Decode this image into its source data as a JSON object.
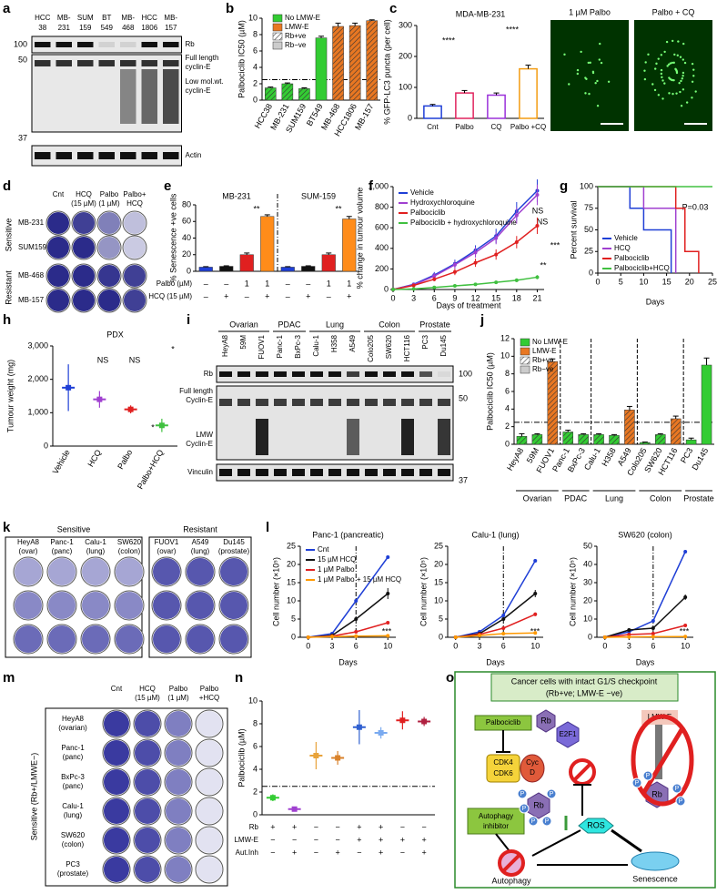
{
  "panels": [
    "a",
    "b",
    "c",
    "d",
    "e",
    "f",
    "g",
    "h",
    "i",
    "j",
    "k",
    "l",
    "m",
    "n",
    "o"
  ],
  "blot_a": {
    "lanes": [
      [
        "HCC",
        "38"
      ],
      [
        "MB-",
        "231"
      ],
      [
        "SUM",
        "159"
      ],
      [
        "BT",
        "549"
      ],
      [
        "MB-",
        "468"
      ],
      [
        "HCC",
        "1806"
      ],
      [
        "MB-",
        "157"
      ]
    ],
    "rows": [
      [
        "Rb"
      ],
      [
        "Full length",
        "cyclin-E"
      ],
      [
        "Low mol.wt.",
        "cyclin-E"
      ],
      [
        "Actin"
      ]
    ],
    "markers": [
      100,
      50,
      37
    ]
  },
  "images_c": [
    "1 µM Palbo",
    "Palbo + CQ"
  ],
  "plates_d": {
    "columns": [
      [
        "Cnt"
      ],
      [
        "HCQ",
        "(15 µM)"
      ],
      [
        "Palbo",
        "(1 µM)"
      ],
      [
        "Palbo+",
        "HCQ"
      ]
    ],
    "rows": [
      "MB-231",
      "SUM159",
      "MB-468",
      "MB-157"
    ],
    "groups": [
      "Sensitive",
      "Resistant"
    ]
  },
  "blot_i": {
    "groups": [
      "Ovarian",
      "PDAC",
      "Lung",
      "Colon",
      "Prostate"
    ],
    "lanes": [
      "HeyA8",
      "59M",
      "FUOV1",
      "Panc-1",
      "BxPc-3",
      "Calu-1",
      "H358",
      "A549",
      "Colo205",
      "SW620",
      "HCT116",
      "PC3",
      "Du145"
    ],
    "rows": [
      [
        "Rb"
      ],
      [
        "Full length",
        "Cyclin-E"
      ],
      [
        "LMW",
        "Cyclin-E"
      ],
      [
        "Vinculin"
      ]
    ],
    "markers": [
      100,
      50,
      37
    ]
  },
  "plates_k": {
    "groups": [
      "Sensitive",
      "Resistant"
    ],
    "sensitive": [
      [
        "HeyA8",
        "(ovar)"
      ],
      [
        "Panc-1",
        "(panc)"
      ],
      [
        "Calu-1",
        "(lung)"
      ],
      [
        "SW620",
        "(colon)"
      ]
    ],
    "resistant": [
      [
        "FUOV1",
        "(ovar)"
      ],
      [
        "A549",
        "(lung)"
      ],
      [
        "Du145",
        "(prostate)"
      ]
    ]
  },
  "plates_m": {
    "columns": [
      [
        "Cnt"
      ],
      [
        "HCQ",
        "(15 µM)"
      ],
      [
        "Palbo",
        "(1 µM)"
      ],
      [
        "Palbo",
        "+HCQ"
      ]
    ],
    "rows": [
      [
        "HeyA8",
        "(ovarian)"
      ],
      [
        "Panc-1",
        "(panc)"
      ],
      [
        "BxPc-3",
        "(panc)"
      ],
      [
        "Calu-1",
        "(lung)"
      ],
      [
        "SW620",
        "(colon)"
      ],
      [
        "PC3",
        "(prostate)"
      ]
    ],
    "side": "Sensitive (Rb+/LMWE−)"
  },
  "diagram_o": {
    "title": [
      "Cancer cells with intact G1/S checkpoint",
      "(Rb+ve; LMW-E −ve)"
    ],
    "palbociclib": "Palbociclib",
    "rb": "Rb",
    "e2f1": "E2F1",
    "cdk4": "CDK4",
    "cdk6": "CDK6",
    "cycd": [
      "Cyc",
      "D"
    ],
    "rb_p": "Rb",
    "lmwe": "LMW-E",
    "rb_lmwe": "Rb",
    "inhibitor": [
      "Autophagy",
      "inhibitor"
    ],
    "ros": "ROS",
    "autophagy": "Autophagy",
    "senescence": "Senescence",
    "phosphate": "P"
  },
  "chart_data": [
    {
      "type": "bar",
      "ylabel": "Palbociclib IC50 (µM)",
      "categories": [
        "HCC38",
        "MB-231",
        "SUM159",
        "BT549",
        "MB-468",
        "HCC1806",
        "MB-157"
      ],
      "values": [
        1.5,
        2.0,
        1.4,
        7.6,
        9.0,
        9.1,
        9.7
      ],
      "errors": [
        0.1,
        0.1,
        0.1,
        0.2,
        0.4,
        0.3,
        0.1
      ],
      "colors": [
        "#33cc33",
        "#33cc33",
        "#33cc33",
        "#33cc33",
        "#e87722",
        "#e87722",
        "#e87722"
      ],
      "hatched": [
        true,
        true,
        true,
        false,
        true,
        true,
        true
      ],
      "rotate_labels": true,
      "reference": 2.5,
      "ylim": [
        0,
        10
      ],
      "yticks": [
        0,
        2,
        4,
        6,
        8,
        10
      ],
      "legend": [
        {
          "name": "No LMW-E",
          "color": "#33cc33",
          "hatched": false
        },
        {
          "name": "LMW-E",
          "color": "#e87722",
          "hatched": false
        },
        {
          "name": "Rb+ve",
          "color": "#ffffff",
          "hatched": true
        },
        {
          "name": "Rb−ve",
          "color": "#cccccc",
          "hatched": false
        }
      ]
    },
    {
      "type": "bar",
      "style": "outline",
      "title": "MDA-MB-231",
      "ylabel": "% GFP-LC3 puncta (per cell)",
      "categories": [
        "Cnt",
        "Palbo",
        "CQ",
        "Palbo +CQ"
      ],
      "values": [
        40,
        82,
        75,
        160
      ],
      "errors": [
        5,
        8,
        7,
        12
      ],
      "colors": [
        "#1f3fd6",
        "#e0245e",
        "#9b30d9",
        "#f39c12"
      ],
      "ylim": [
        0,
        300
      ],
      "yticks": [
        0,
        100,
        200,
        300
      ],
      "annotations": [
        "****",
        "****"
      ]
    },
    {
      "type": "bar",
      "ylabel": "% Senescence +ve cells",
      "categories": [
        null,
        null,
        null,
        null,
        null,
        null,
        null,
        null
      ],
      "values": [
        5,
        6,
        20,
        66,
        5,
        6,
        20,
        63
      ],
      "errors": [
        0.6,
        0.6,
        2,
        2,
        0.6,
        0.6,
        2,
        3
      ],
      "colors": [
        "#1f3fd6",
        "#111111",
        "#e02020",
        "#ff8c1a",
        "#1f3fd6",
        "#111111",
        "#e02020",
        "#ff8c1a"
      ],
      "groups": [
        "MB-231",
        "SUM-159"
      ],
      "ylim": [
        0,
        80
      ],
      "yticks": [
        0,
        20,
        40,
        60,
        80
      ],
      "conditions": [
        {
          "name": "Palbo (µM)",
          "marks": [
            "–",
            "–",
            "1",
            "1",
            "–",
            "–",
            "1",
            "1"
          ]
        },
        {
          "name": "HCQ (15 µM)",
          "marks": [
            "–",
            "+",
            "–",
            "+",
            "–",
            "+",
            "–",
            "+"
          ]
        }
      ],
      "annotations": [
        "**",
        "**"
      ]
    },
    {
      "type": "line",
      "xlabel": "Days of treatment",
      "ylabel": "% change in tumour volume",
      "x": [
        0,
        3,
        6,
        9,
        12,
        15,
        18,
        21
      ],
      "xlim": [
        0,
        22
      ],
      "xticks": [
        0,
        3,
        6,
        9,
        12,
        15,
        18,
        21
      ],
      "ylim": [
        0,
        1000
      ],
      "yticks": [
        0,
        200,
        400,
        600,
        800,
        {
          "value": 1000,
          "label": "1,000"
        }
      ],
      "series": [
        {
          "name": "Vehicle",
          "color": "#1f3fd6",
          "values": [
            0,
            50,
            140,
            250,
            380,
            520,
            760,
            960
          ],
          "errors": [
            0,
            15,
            30,
            40,
            50,
            70,
            90,
            110
          ]
        },
        {
          "name": "Hydroxychloroquine",
          "color": "#a040d0",
          "values": [
            0,
            45,
            130,
            240,
            360,
            500,
            720,
            920
          ],
          "errors": [
            0,
            15,
            30,
            40,
            50,
            60,
            80,
            100
          ]
        },
        {
          "name": "Palbociclib",
          "color": "#e02020",
          "values": [
            0,
            40,
            100,
            170,
            260,
            340,
            460,
            620
          ],
          "errors": [
            0,
            15,
            20,
            30,
            40,
            50,
            60,
            80
          ]
        },
        {
          "name": "Palbociclib + hydroxychloroquine",
          "color": "#40c040",
          "values": [
            0,
            5,
            20,
            35,
            50,
            70,
            90,
            120
          ],
          "errors": [
            0,
            5,
            8,
            10,
            12,
            15,
            18,
            20
          ]
        }
      ],
      "annotations": [
        "NS",
        "NS",
        "***",
        "**"
      ]
    },
    {
      "type": "step",
      "xlabel": "Days",
      "ylabel": "Percent survival",
      "xlim": [
        0,
        25
      ],
      "xticks": [
        0,
        5,
        10,
        15,
        20,
        25
      ],
      "ylim": [
        0,
        100
      ],
      "yticks": [
        0,
        25,
        50,
        75,
        100
      ],
      "series": [
        {
          "name": "Vehicle",
          "color": "#1f3fd6",
          "x": [
            0,
            7,
            10,
            16
          ],
          "values": [
            100,
            75,
            50,
            0
          ]
        },
        {
          "name": "HCQ",
          "color": "#a040d0",
          "x": [
            0,
            10,
            17
          ],
          "values": [
            100,
            75,
            0
          ]
        },
        {
          "name": "Palbociclib",
          "color": "#e02020",
          "x": [
            0,
            17,
            19,
            22
          ],
          "values": [
            100,
            75,
            25,
            0
          ]
        },
        {
          "name": "Palbociclib+HCQ",
          "color": "#40c040",
          "x": [
            0,
            25
          ],
          "values": [
            100,
            100
          ]
        }
      ],
      "annotations": [
        "P=0.03"
      ]
    },
    {
      "type": "dot",
      "title": "PDX",
      "ylabel": "Tumour weight (mg)",
      "categories": [
        "Vehicle",
        "HCQ",
        "Palbo",
        "Palbo+HCQ"
      ],
      "values": [
        1750,
        1400,
        1100,
        620
      ],
      "errors": [
        700,
        250,
        120,
        200
      ],
      "colors": [
        "#1f3fd6",
        "#a040d0",
        "#e02020",
        "#40c040"
      ],
      "rotate_labels": true,
      "ylim": [
        0,
        3000
      ],
      "yticks": [
        0,
        {
          "value": 1000,
          "label": "1,000"
        },
        {
          "value": 2000,
          "label": "2,000"
        },
        {
          "value": 3000,
          "label": "3,000"
        }
      ],
      "annotations": [
        "NS",
        "NS",
        "*",
        "*"
      ]
    },
    {
      "type": "bar",
      "ylabel": "Palbociclib IC50 (µM)",
      "categories": [
        "HeyA8",
        "59M",
        "FUOV1",
        "Panc-1",
        "BxPc-3",
        "Calu-1",
        "H358",
        "A549",
        "Colo205",
        "SW620",
        "HCT116",
        "PC3",
        "Du145"
      ],
      "values": [
        0.9,
        1.1,
        9.4,
        1.4,
        1.1,
        1.1,
        1.0,
        3.9,
        0.2,
        1.1,
        2.9,
        0.5,
        9.0
      ],
      "errors": [
        0.3,
        0.1,
        0.3,
        0.2,
        0.1,
        0.1,
        0.1,
        0.4,
        0.05,
        0.1,
        0.3,
        0.2,
        0.8
      ],
      "colors": [
        "#33cc33",
        "#33cc33",
        "#e87722",
        "#33cc33",
        "#33cc33",
        "#33cc33",
        "#33cc33",
        "#e87722",
        "#33cc33",
        "#33cc33",
        "#e87722",
        "#33cc33",
        "#33cc33"
      ],
      "hatched": [
        true,
        true,
        true,
        true,
        true,
        true,
        true,
        true,
        true,
        true,
        true,
        false,
        false
      ],
      "rotate_labels": true,
      "reference": 2.5,
      "ylim": [
        0,
        12
      ],
      "yticks": [
        0,
        2,
        4,
        6,
        8,
        10,
        12
      ],
      "groups": [
        "Ovarian",
        "PDAC",
        "Lung",
        "Colon",
        "Prostate"
      ],
      "legend": [
        {
          "name": "No LMW-E",
          "color": "#33cc33",
          "hatched": false
        },
        {
          "name": "LMW-E",
          "color": "#e87722",
          "hatched": false
        },
        {
          "name": "Rb+ve",
          "color": "#ffffff",
          "hatched": true
        },
        {
          "name": "Rb−ve",
          "color": "#cccccc",
          "hatched": false
        }
      ]
    },
    {
      "type": "line",
      "title": "Panc-1 (pancreatic)",
      "xlabel": "Days",
      "ylabel": "Cell number (×10⁵)",
      "x": [
        0,
        3,
        6,
        10
      ],
      "xlim": [
        -1,
        11
      ],
      "xticks": [
        0,
        3,
        6,
        10
      ],
      "ylim": [
        0,
        25
      ],
      "yticks": [
        0,
        5,
        10,
        15,
        20,
        25
      ],
      "marker_x": 6,
      "series": [
        {
          "name": "Cnt",
          "color": "#1f3fd6",
          "values": [
            0,
            1,
            10,
            22
          ],
          "errors": [
            0,
            0.3,
            0.5,
            0.5
          ]
        },
        {
          "name": "15 µM HCQ",
          "color": "#111111",
          "values": [
            0,
            0.5,
            5,
            12
          ],
          "errors": [
            0,
            0.2,
            0.5,
            1.5
          ]
        },
        {
          "name": "1 µM Palbo",
          "color": "#e02020",
          "values": [
            0,
            0.3,
            1.5,
            4
          ],
          "errors": [
            0,
            0.1,
            0.2,
            0.4
          ]
        },
        {
          "name": "1 µM Palbo + 15 µM HCQ",
          "color": "#ff9900",
          "values": [
            0,
            0.2,
            0.3,
            0.4
          ],
          "errors": [
            0,
            0.05,
            0.05,
            0.1
          ]
        }
      ],
      "annotations": [
        "***"
      ]
    },
    {
      "type": "line",
      "title": "Calu-1 (lung)",
      "xlabel": "Days",
      "ylabel": "Cell number (×10⁵)",
      "x": [
        0,
        3,
        6,
        10
      ],
      "xlim": [
        -1,
        11
      ],
      "xticks": [
        0,
        3,
        6,
        10
      ],
      "ylim": [
        0,
        25
      ],
      "yticks": [
        0,
        5,
        10,
        15,
        20,
        25
      ],
      "marker_x": 6,
      "series": [
        {
          "color": "#1f3fd6",
          "values": [
            0,
            1.5,
            6,
            21
          ],
          "errors": [
            0,
            0.3,
            0.5,
            0.5
          ]
        },
        {
          "color": "#111111",
          "values": [
            0,
            1,
            5,
            12
          ],
          "errors": [
            0,
            0.2,
            0.5,
            1
          ]
        },
        {
          "color": "#e02020",
          "values": [
            0,
            0.8,
            2.5,
            6.3
          ],
          "errors": [
            0,
            0.1,
            0.3,
            0.5
          ]
        },
        {
          "color": "#ff9900",
          "values": [
            0,
            0.5,
            1,
            1.2
          ],
          "errors": [
            0,
            0.05,
            0.1,
            0.1
          ]
        }
      ],
      "annotations": [
        "***"
      ]
    },
    {
      "type": "line",
      "title": "SW620 (colon)",
      "xlabel": "Days",
      "ylabel": "Cell number (×10⁵)",
      "x": [
        0,
        3,
        6,
        10
      ],
      "xlim": [
        -1,
        11
      ],
      "xticks": [
        0,
        3,
        6,
        10
      ],
      "ylim": [
        0,
        50
      ],
      "yticks": [
        0,
        10,
        20,
        30,
        40,
        50
      ],
      "marker_x": 6,
      "series": [
        {
          "color": "#1f3fd6",
          "values": [
            0,
            3,
            9,
            47
          ],
          "errors": [
            0,
            1.5,
            1,
            1
          ]
        },
        {
          "color": "#111111",
          "values": [
            0,
            4,
            5,
            22
          ],
          "errors": [
            0,
            1,
            1,
            1.5
          ]
        },
        {
          "color": "#e02020",
          "values": [
            0,
            1.5,
            2,
            6.5
          ],
          "errors": [
            0,
            0.3,
            0.3,
            0.5
          ]
        },
        {
          "color": "#ff9900",
          "values": [
            0,
            0.2,
            0.3,
            0.4
          ],
          "errors": [
            0,
            0.05,
            0.05,
            0.1
          ]
        }
      ],
      "annotations": [
        "***"
      ]
    },
    {
      "type": "dot",
      "ylabel": "Palbociclib (µM)",
      "categories": [
        null,
        null,
        null,
        null,
        null,
        null,
        null,
        null
      ],
      "values": [
        1.5,
        0.5,
        5.2,
        5.0,
        7.7,
        7.2,
        8.3,
        8.2
      ],
      "errors": [
        0.3,
        0.2,
        1.2,
        0.6,
        1.5,
        0.5,
        0.8,
        0.4
      ],
      "colors": [
        "#33cc33",
        "#a040d0",
        "#e8a33a",
        "#d9822b",
        "#3060d0",
        "#7aaaf0",
        "#e02020",
        "#b02040"
      ],
      "reference": 2.5,
      "ylim": [
        0,
        10
      ],
      "yticks": [
        0,
        2,
        4,
        6,
        8,
        10
      ],
      "conditions": [
        {
          "name": "Rb",
          "marks": [
            "+",
            "+",
            "−",
            "−",
            "+",
            "+",
            "−",
            "−"
          ]
        },
        {
          "name": "LMW-E",
          "marks": [
            "−",
            "−",
            "−",
            "−",
            "+",
            "+",
            "+",
            "+"
          ]
        },
        {
          "name": "Aut.Inh",
          "marks": [
            "−",
            "+",
            "−",
            "+",
            "−",
            "+",
            "−",
            "+"
          ]
        }
      ]
    }
  ]
}
